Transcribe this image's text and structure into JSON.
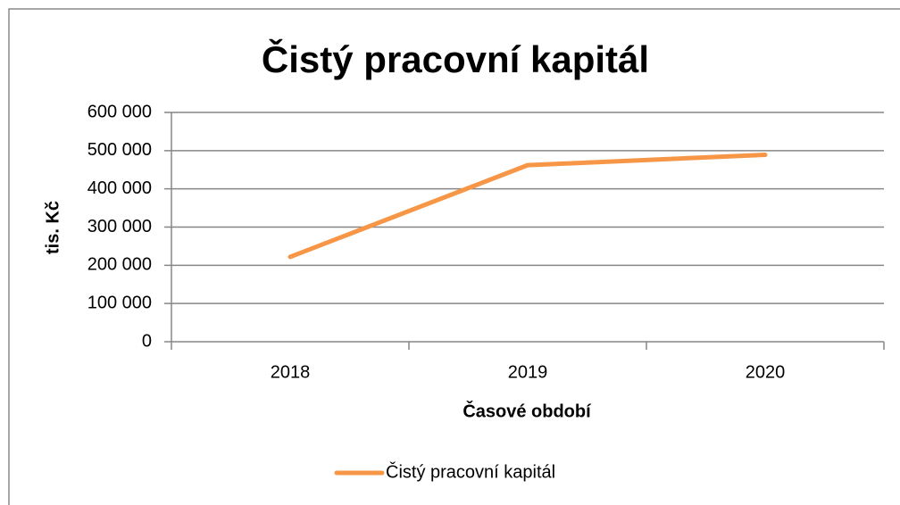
{
  "chart_data": {
    "type": "line",
    "title": "Čistý pracovní kapitál",
    "x_label": "Časové období",
    "y_label": "tis. Kč",
    "categories": [
      "2018",
      "2019",
      "2020"
    ],
    "series": [
      {
        "name": "Čistý pracovní kapitál",
        "color": "#f79646",
        "values": [
          222000,
          462000,
          489000
        ]
      }
    ],
    "ylim": [
      0,
      600000
    ],
    "yticks": [
      0,
      {
        "value": 100000,
        "label": "100 000"
      },
      {
        "value": 200000,
        "label": "200 000"
      },
      {
        "value": 300000,
        "label": "300 000"
      },
      {
        "value": 400000,
        "label": "400 000"
      },
      {
        "value": 500000,
        "label": "500 000"
      },
      {
        "value": 600000,
        "label": "600 000"
      }
    ],
    "grid": true,
    "legend": "bottom"
  }
}
